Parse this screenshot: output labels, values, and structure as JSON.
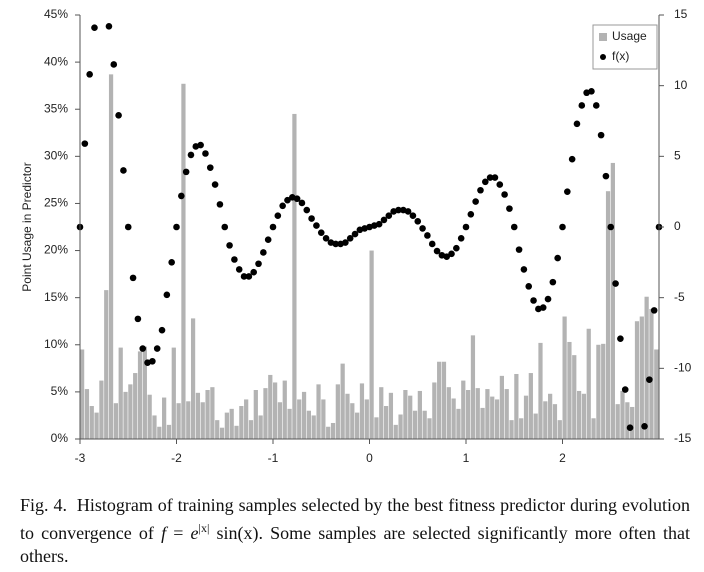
{
  "chart_data": {
    "type": "histogram",
    "ylabel": "Point Usage in Predictor",
    "xlim": [
      -3,
      3
    ],
    "xticks": [
      -3,
      -2,
      -1,
      0,
      1,
      2
    ],
    "ylim": [
      0,
      45
    ],
    "yticks": [
      {
        "value": 0,
        "label": "0%"
      },
      {
        "value": 5,
        "label": "5%"
      },
      {
        "value": 10,
        "label": "10%"
      },
      {
        "value": 15,
        "label": "15%"
      },
      {
        "value": 20,
        "label": "20%"
      },
      {
        "value": 25,
        "label": "25%"
      },
      {
        "value": 30,
        "label": "30%"
      },
      {
        "value": 35,
        "label": "35%"
      },
      {
        "value": 40,
        "label": "40%"
      },
      {
        "value": 45,
        "label": "45%"
      }
    ],
    "y2lim": [
      -15,
      15
    ],
    "y2ticks": [
      -15,
      -10,
      -5,
      0,
      5,
      10,
      15
    ],
    "legend": "top-right",
    "series": [
      {
        "name": "Usage",
        "type": "histogram",
        "color": "#b3b3b3",
        "bins": [
          -3,
          -2.95,
          -2.9,
          -2.85,
          -2.8,
          -2.75,
          -2.7,
          -2.65,
          -2.6,
          -2.55,
          -2.5,
          -2.45,
          -2.4,
          -2.35,
          -2.3,
          -2.25,
          -2.2,
          -2.15,
          -2.1,
          -2.05,
          -2,
          -1.95,
          -1.9,
          -1.85,
          -1.8,
          -1.75,
          -1.7,
          -1.65,
          -1.6,
          -1.55,
          -1.5,
          -1.45,
          -1.4,
          -1.35,
          -1.3,
          -1.25,
          -1.2,
          -1.15,
          -1.1,
          -1.05,
          -1,
          -0.95,
          -0.9,
          -0.85,
          -0.8,
          -0.75,
          -0.7,
          -0.65,
          -0.6,
          -0.55,
          -0.5,
          -0.45,
          -0.4,
          -0.35,
          -0.3,
          -0.25,
          -0.2,
          -0.15,
          -0.1,
          -0.05,
          0,
          0.05,
          0.1,
          0.15,
          0.2,
          0.25,
          0.3,
          0.35,
          0.4,
          0.45,
          0.5,
          0.55,
          0.6,
          0.65,
          0.7,
          0.75,
          0.8,
          0.85,
          0.9,
          0.95,
          1,
          1.05,
          1.1,
          1.15,
          1.2,
          1.25,
          1.3,
          1.35,
          1.4,
          1.45,
          1.5,
          1.55,
          1.6,
          1.65,
          1.7,
          1.75,
          1.8,
          1.85,
          1.9,
          1.95,
          2,
          2.05,
          2.1,
          2.15,
          2.2,
          2.25,
          2.3,
          2.35,
          2.4,
          2.45,
          2.5,
          2.55,
          2.6,
          2.65,
          2.7,
          2.75,
          2.8,
          2.85,
          2.9,
          2.95,
          3
        ],
        "values": [
          9.5,
          5.3,
          3.5,
          2.8,
          6.2,
          15.8,
          38.7,
          3.8,
          9.7,
          5.0,
          5.8,
          7.0,
          9.3,
          9.8,
          4.7,
          2.5,
          1.3,
          4.4,
          1.5,
          9.7,
          3.8,
          37.7,
          4.0,
          12.8,
          4.9,
          3.9,
          5.2,
          5.5,
          2.0,
          1.2,
          2.8,
          3.2,
          1.4,
          3.5,
          4.2,
          2.0,
          5.2,
          2.5,
          5.4,
          6.8,
          6.0,
          3.9,
          6.2,
          3.2,
          34.5,
          4.2,
          5.0,
          3.0,
          2.5,
          5.8,
          4.2,
          1.3,
          1.7,
          5.8,
          8.0,
          4.8,
          3.8,
          2.8,
          5.9,
          4.2,
          20.0,
          2.3,
          5.5,
          3.5,
          4.9,
          1.5,
          2.6,
          5.2,
          4.6,
          3.0,
          5.1,
          3.0,
          2.2,
          6.0,
          8.2,
          8.2,
          5.5,
          4.3,
          3.2,
          6.2,
          5.2,
          11.0,
          5.4,
          3.3,
          5.3,
          4.5,
          4.2,
          6.7,
          5.3,
          2.0,
          6.9,
          2.2,
          4.6,
          7.0,
          2.7,
          10.2,
          4.0,
          4.8,
          3.7,
          2.0,
          13.0,
          10.3,
          8.9,
          5.1,
          4.8,
          11.7,
          2.2,
          10.0,
          10.1,
          26.3,
          29.3,
          3.7,
          5.1,
          3.9,
          3.4,
          12.5,
          13.0,
          15.1,
          13.8,
          9.5
        ]
      },
      {
        "name": "f(x)",
        "type": "scatter",
        "axis": "y2",
        "color": "#000000",
        "x": [
          -3,
          -2.95,
          -2.9,
          -2.85,
          -2.7,
          -2.65,
          -2.6,
          -2.55,
          -2.5,
          -2.45,
          -2.4,
          -2.35,
          -2.3,
          -2.25,
          -2.2,
          -2.15,
          -2.1,
          -2.05,
          -2,
          -1.95,
          -1.9,
          -1.85,
          -1.8,
          -1.75,
          -1.7,
          -1.65,
          -1.6,
          -1.55,
          -1.5,
          -1.45,
          -1.4,
          -1.35,
          -1.3,
          -1.25,
          -1.2,
          -1.15,
          -1.1,
          -1.05,
          -1,
          -0.95,
          -0.9,
          -0.85,
          -0.8,
          -0.75,
          -0.7,
          -0.65,
          -0.6,
          -0.55,
          -0.5,
          -0.45,
          -0.4,
          -0.35,
          -0.3,
          -0.25,
          -0.2,
          -0.15,
          -0.1,
          -0.05,
          0,
          0.05,
          0.1,
          0.15,
          0.2,
          0.25,
          0.3,
          0.35,
          0.4,
          0.45,
          0.5,
          0.55,
          0.6,
          0.65,
          0.7,
          0.75,
          0.8,
          0.85,
          0.9,
          0.95,
          1,
          1.05,
          1.1,
          1.15,
          1.2,
          1.25,
          1.3,
          1.35,
          1.4,
          1.45,
          1.5,
          1.55,
          1.6,
          1.65,
          1.7,
          1.75,
          1.8,
          1.85,
          1.9,
          1.95,
          2,
          2.05,
          2.1,
          2.15,
          2.2,
          2.25,
          2.3,
          2.35,
          2.4,
          2.45,
          2.5,
          2.55,
          2.6,
          2.65,
          2.7,
          2.85,
          2.9,
          2.95,
          3
        ],
        "values": [
          0,
          5.9,
          10.8,
          14.1,
          14.2,
          11.5,
          7.9,
          4.0,
          0,
          -3.6,
          -6.5,
          -8.6,
          -9.6,
          -9.5,
          -8.6,
          -7.3,
          -4.8,
          -2.5,
          0,
          2.2,
          3.9,
          5.1,
          5.7,
          5.8,
          5.2,
          4.2,
          3.0,
          1.6,
          0,
          -1.3,
          -2.3,
          -3.0,
          -3.5,
          -3.5,
          -3.2,
          -2.6,
          -1.8,
          -0.9,
          0,
          0.8,
          1.5,
          1.9,
          2.1,
          2.0,
          1.7,
          1.2,
          0.6,
          0.1,
          -0.4,
          -0.8,
          -1.1,
          -1.2,
          -1.2,
          -1.1,
          -0.8,
          -0.5,
          -0.2,
          -0.1,
          0,
          0.1,
          0.2,
          0.5,
          0.8,
          1.1,
          1.2,
          1.2,
          1.1,
          0.8,
          0.4,
          -0.1,
          -0.6,
          -1.2,
          -1.7,
          -2.0,
          -2.1,
          -1.9,
          -1.5,
          -0.8,
          0,
          0.9,
          1.8,
          2.6,
          3.2,
          3.5,
          3.5,
          3.0,
          2.3,
          1.3,
          0,
          -1.6,
          -3.0,
          -4.2,
          -5.2,
          -5.8,
          -5.7,
          -5.1,
          -3.9,
          -2.2,
          0,
          2.5,
          4.8,
          7.3,
          8.6,
          9.5,
          9.6,
          8.6,
          6.5,
          3.6,
          0,
          -4.0,
          -7.9,
          -11.5,
          -14.2,
          -14.1,
          -10.8,
          -5.9,
          0
        ]
      }
    ]
  },
  "caption": {
    "label": "Fig. 4.",
    "text_before": "Histogram of training samples selected by the best fitness predictor during evolution to convergence of",
    "lhs": "f",
    "operator": "=",
    "base": "e",
    "exponent": "|x|",
    "rhs": "sin(x)",
    "text_after": ". Some samples are selected significantly more often that others."
  }
}
